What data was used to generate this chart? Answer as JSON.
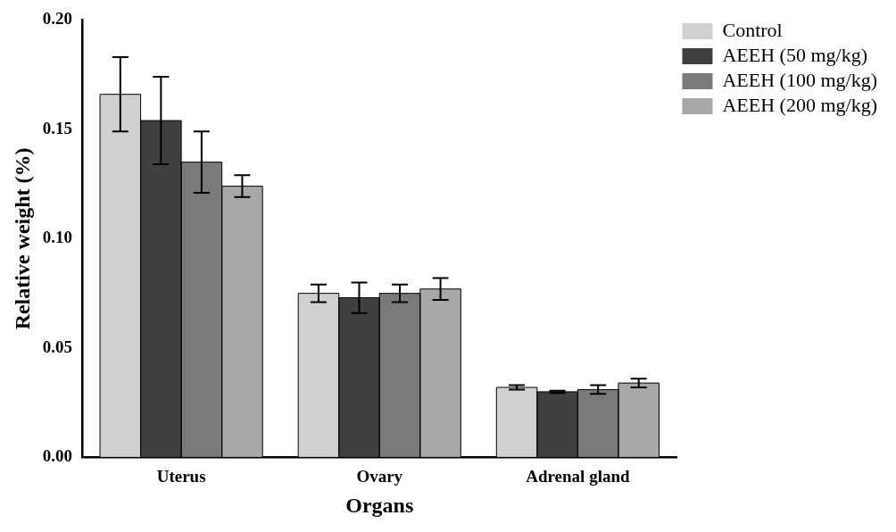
{
  "chart_data": {
    "type": "bar",
    "xlabel": "Organs",
    "ylabel": "Relative weight (%)",
    "categories": [
      "Uterus",
      "Ovary",
      "Adrenal gland"
    ],
    "series": [
      {
        "name": "Control",
        "color": "#d0d0d0",
        "values": [
          0.166,
          0.075,
          0.032
        ],
        "errors": [
          0.017,
          0.004,
          0.001
        ]
      },
      {
        "name": "AEEH (50 mg/kg)",
        "color": "#404040",
        "values": [
          0.154,
          0.073,
          0.03
        ],
        "errors": [
          0.02,
          0.007,
          0.0005
        ]
      },
      {
        "name": "AEEH (100 mg/kg)",
        "color": "#7a7a7a",
        "values": [
          0.135,
          0.075,
          0.031
        ],
        "errors": [
          0.014,
          0.004,
          0.002
        ]
      },
      {
        "name": "AEEH (200 mg/kg)",
        "color": "#a8a8a8",
        "values": [
          0.124,
          0.077,
          0.034
        ],
        "errors": [
          0.005,
          0.005,
          0.002
        ]
      }
    ],
    "ylim": [
      0,
      0.2
    ],
    "yticks": [
      {
        "value": 0,
        "label": "0.00"
      },
      {
        "value": 0.05,
        "label": "0.05"
      },
      {
        "value": 0.1,
        "label": "0.10"
      },
      {
        "value": 0.15,
        "label": "0.15"
      },
      {
        "value": 0.2,
        "label": "0.20"
      }
    ],
    "grid": false,
    "legend": "top right"
  }
}
